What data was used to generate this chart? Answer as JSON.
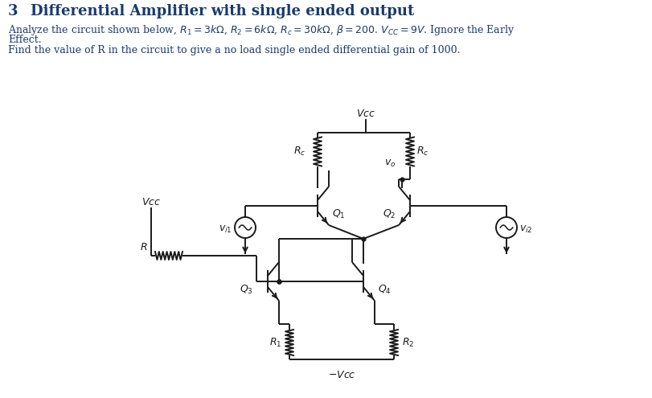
{
  "title_number": "3",
  "title_text": "Differential Amplifier with single ended output",
  "body1": "Analyze the circuit shown below, $R_1 = 3k\\Omega$, $R_2 = 6k\\Omega$, $R_c = 30k\\Omega$, $\\beta = 200$. $V_{CC} = 9V$. Ignore the Early",
  "body2": "Effect.",
  "body3": "Find the value of R in the circuit to give a no load single ended differential gain of 1000.",
  "bg_color": "#ffffff",
  "text_color": "#1a3a6b",
  "circuit_color": "#1a1a1a",
  "fig_width": 8.12,
  "fig_height": 4.95,
  "dpi": 100
}
